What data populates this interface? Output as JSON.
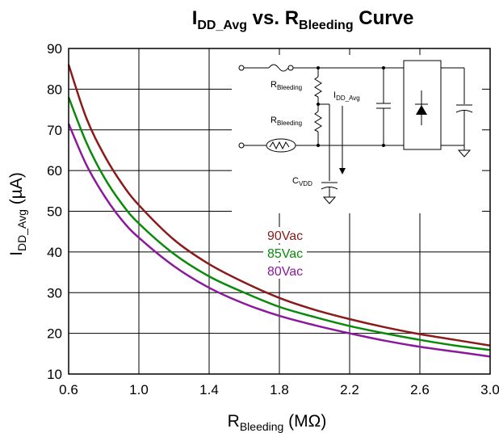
{
  "chart_data": {
    "type": "line",
    "title": {
      "main": "I",
      "main_sub": "DD_Avg",
      "mid": " vs. R",
      "mid_sub": "Bleeding",
      "end": " Curve"
    },
    "xlabel": {
      "main": "R",
      "sub": "Bleeding",
      "unit": " (MΩ)"
    },
    "ylabel": {
      "main": "I",
      "sub": "DD_Avg",
      "unit": " (µA)"
    },
    "xlim": [
      0.6,
      3.0
    ],
    "ylim": [
      10,
      90
    ],
    "x_ticks": [
      "0.6",
      "1.0",
      "1.4",
      "1.8",
      "2.2",
      "2.6",
      "3.0"
    ],
    "y_ticks": [
      "10",
      "20",
      "30",
      "40",
      "50",
      "60",
      "70",
      "80",
      "90"
    ],
    "grid": true,
    "legend_position": "center",
    "series": [
      {
        "name": "90Vac",
        "color": "#8b1a1a",
        "x": [
          0.6,
          0.7,
          0.8,
          0.9,
          1.0,
          1.2,
          1.4,
          1.6,
          1.8,
          2.0,
          2.2,
          2.4,
          2.6,
          2.8,
          3.0
        ],
        "y": [
          86,
          73,
          64,
          57,
          51.5,
          43,
          37,
          32.5,
          28.7,
          25.8,
          23.5,
          21.5,
          19.8,
          18.4,
          17
        ]
      },
      {
        "name": "85Vac",
        "color": "#0a8a0a",
        "x": [
          0.6,
          0.7,
          0.8,
          0.9,
          1.0,
          1.2,
          1.4,
          1.6,
          1.8,
          2.0,
          2.2,
          2.4,
          2.6,
          2.8,
          3.0
        ],
        "y": [
          78,
          67,
          58.5,
          52,
          47,
          39.5,
          34,
          30,
          26.5,
          24,
          21.8,
          20,
          18.4,
          17,
          15.9
        ]
      },
      {
        "name": "80Vac",
        "color": "#8a1a9a",
        "x": [
          0.6,
          0.7,
          0.8,
          0.9,
          1.0,
          1.2,
          1.4,
          1.6,
          1.8,
          2.0,
          2.2,
          2.4,
          2.6,
          2.8,
          3.0
        ],
        "y": [
          71.5,
          61.5,
          54,
          48,
          43.5,
          36.5,
          31.2,
          27.3,
          24.3,
          22,
          20,
          18.2,
          16.7,
          15.5,
          14.3
        ]
      }
    ],
    "inset": {
      "labels": {
        "r_top": "R",
        "r_top_sub": "Bleeding",
        "r_bot": "R",
        "r_bot_sub": "Bleeding",
        "current": "I",
        "current_sub": "DD_Avg",
        "cap": "C",
        "cap_sub": "VDD"
      }
    }
  }
}
